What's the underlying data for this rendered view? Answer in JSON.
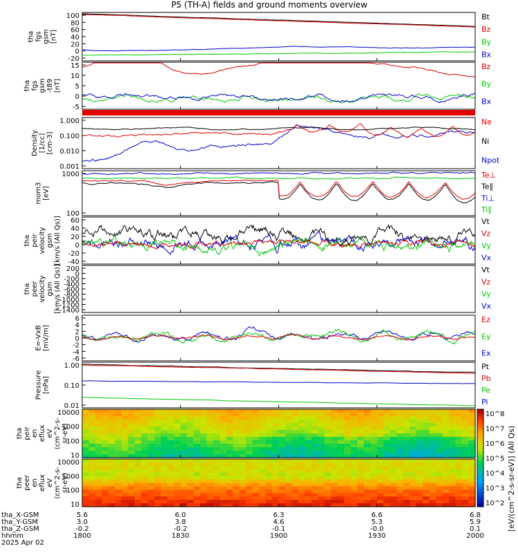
{
  "title": "P5 (TH-A) fields and ground moments overview",
  "colors": {
    "black": "#000000",
    "red": "#e00000",
    "green": "#00c800",
    "blue": "#0000d0"
  },
  "chart_data": [
    {
      "type": "line",
      "ytitle": [
        "tha",
        "fgs",
        "gsm",
        "[nT]"
      ],
      "yticks": [
        "100",
        "80",
        "60",
        "40",
        "20",
        "0",
        "-20"
      ],
      "series": [
        {
          "name": "Bt",
          "color": "black"
        },
        {
          "name": "Bz",
          "color": "red"
        },
        {
          "name": "By",
          "color": "green"
        },
        {
          "name": "Bx",
          "color": "blue"
        }
      ]
    },
    {
      "type": "line",
      "ytitle": [
        "tha",
        "fgs",
        "gsm",
        "-t89",
        "[nT]"
      ],
      "yticks": [
        "15",
        "10",
        "5",
        "0",
        "-5"
      ],
      "series": [
        {
          "name": "Bz",
          "color": "red"
        },
        {
          "name": "By",
          "color": "green"
        },
        {
          "name": "Bx",
          "color": "blue"
        }
      ]
    },
    {
      "type": "line",
      "ytitle": [
        "Density",
        "[1/cc]",
        "[cm-3]"
      ],
      "yticks": [
        "1.000",
        "0.100",
        "0.010",
        "0.001"
      ],
      "scale": "log",
      "series": [
        {
          "name": "Ne",
          "color": "red"
        },
        {
          "name": "Ni",
          "color": "black"
        },
        {
          "name": "Npot",
          "color": "blue"
        }
      ]
    },
    {
      "type": "line",
      "ytitle": [
        "mom3",
        "[eV]"
      ],
      "yticks": [
        "1000",
        "100"
      ],
      "scale": "log",
      "series": [
        {
          "name": "Te⊥",
          "color": "red"
        },
        {
          "name": "Te∥",
          "color": "black"
        },
        {
          "name": "Ti⊥",
          "color": "blue"
        },
        {
          "name": "Ti∥",
          "color": "green"
        }
      ]
    },
    {
      "type": "line",
      "ytitle": [
        "tha",
        "peir",
        "velocity",
        "gsm",
        "[km/s (All Qs)]"
      ],
      "yticks": [
        "60",
        "40",
        "20",
        "0",
        "-20",
        "-40"
      ],
      "series": [
        {
          "name": "Vt",
          "color": "black"
        },
        {
          "name": "Vz",
          "color": "red"
        },
        {
          "name": "Vy",
          "color": "green"
        },
        {
          "name": "Vx",
          "color": "blue"
        }
      ]
    },
    {
      "type": "line",
      "ytitle": [
        "tha",
        "peer",
        "velocity",
        "gsm",
        "[km/s (All Qs)]"
      ],
      "yticks": [
        "200",
        "0",
        "-200",
        "-400",
        "-600",
        "-800",
        "-1000",
        "-1200",
        "-1400"
      ],
      "series": [
        {
          "name": "Vt",
          "color": "black"
        },
        {
          "name": "Vz",
          "color": "red"
        },
        {
          "name": "Vy",
          "color": "green"
        },
        {
          "name": "Vx",
          "color": "blue"
        }
      ]
    },
    {
      "type": "line",
      "ytitle": [
        "E=-VxB",
        "[mV/m]"
      ],
      "yticks": [
        "6",
        "4",
        "2",
        "0",
        "-2",
        "-4",
        "-6"
      ],
      "series": [
        {
          "name": "Ez",
          "color": "red"
        },
        {
          "name": "Ey",
          "color": "green"
        },
        {
          "name": "Ex",
          "color": "blue"
        }
      ]
    },
    {
      "type": "line",
      "ytitle": [
        "Pressure",
        "[nPa]"
      ],
      "yticks": [
        "1.00",
        "0.10",
        "0.01"
      ],
      "scale": "log",
      "series": [
        {
          "name": "Pt",
          "color": "black"
        },
        {
          "name": "Pb",
          "color": "red"
        },
        {
          "name": "Pe",
          "color": "green"
        },
        {
          "name": "Pi",
          "color": "blue"
        }
      ]
    },
    {
      "type": "heatmap",
      "ytitle": [
        "tha",
        "peir",
        "en",
        "eflux",
        "eV",
        "(cm^2-s-",
        "sr-eV)"
      ],
      "yticks": [
        "10000",
        "1000",
        "100",
        "10"
      ],
      "scale": "log"
    },
    {
      "type": "heatmap",
      "ytitle": [
        "tha",
        "peer",
        "en",
        "eflux",
        "eV",
        "(cm^2-s-",
        "sr-eV)"
      ],
      "yticks": [
        "10000",
        "1000",
        "100",
        "10"
      ],
      "scale": "log"
    }
  ],
  "colorbar": {
    "ticks": [
      "10^8",
      "10^7",
      "10^6",
      "10^5",
      "10^4",
      "10^3",
      "10^2"
    ],
    "label": "[eV/(cm^2-s-sr-eV)] (All Qs)"
  },
  "xaxis": {
    "rows": [
      {
        "label": "tha_X-GSM",
        "values": [
          "5.6",
          "6.0",
          "6.3",
          "6.6",
          "6.8"
        ]
      },
      {
        "label": "tha_Y-GSM",
        "values": [
          "3.0",
          "3.8",
          "4.6",
          "5.3",
          "5.9"
        ]
      },
      {
        "label": "tha_Z-GSM",
        "values": [
          "-0.2",
          "-0.2",
          "-0.1",
          "-0.0",
          "0.1"
        ]
      },
      {
        "label": "hhmm",
        "values": [
          "1800",
          "1830",
          "1900",
          "1930",
          "2000"
        ]
      }
    ],
    "date": "2025 Apr 02"
  }
}
